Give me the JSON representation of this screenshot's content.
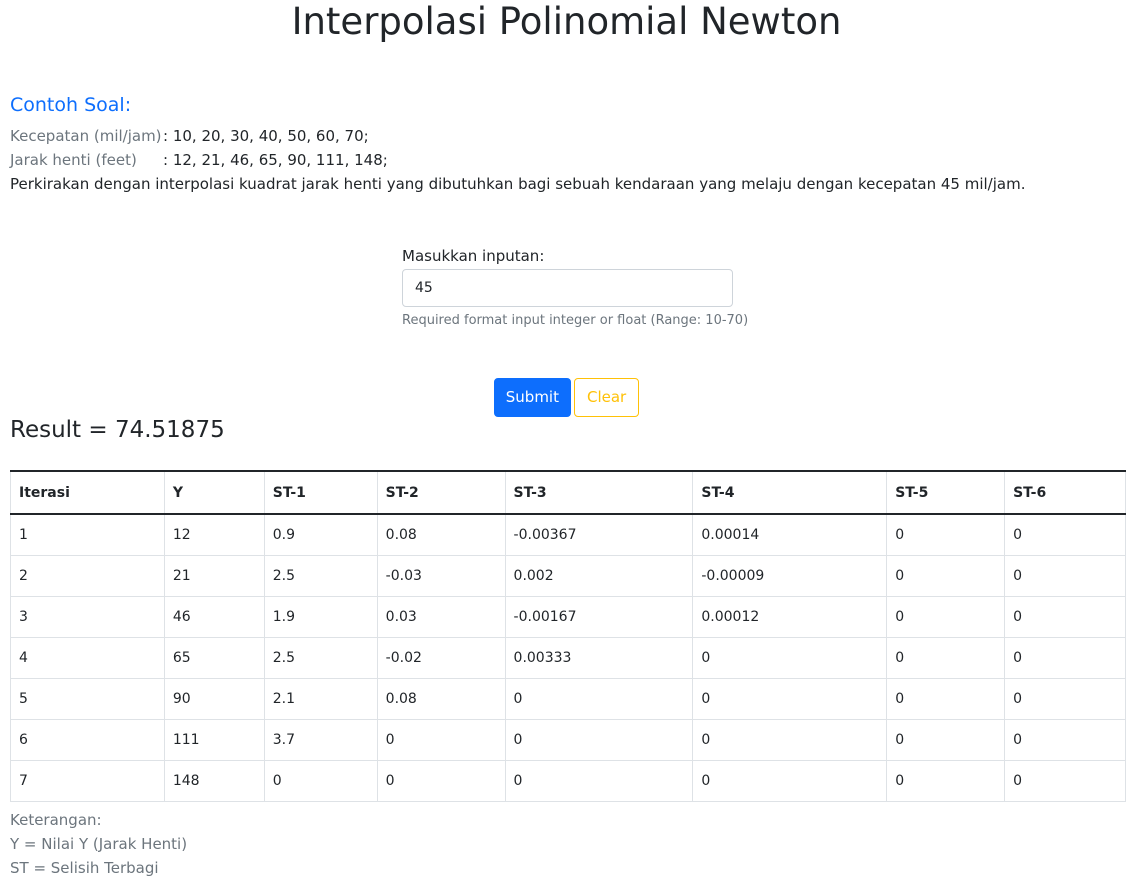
{
  "page": {
    "title": "Interpolasi Polinomial Newton"
  },
  "example": {
    "heading": "Contoh Soal:",
    "speed_label": "Kecepatan (mil/jam)",
    "speed_values": ": 10, 20, 30, 40, 50, 60, 70;",
    "distance_label": "Jarak henti (feet)",
    "distance_values": ": 12, 21, 46, 65, 90, 111, 148;",
    "question": "Perkirakan dengan interpolasi kuadrat jarak henti yang dibutuhkan bagi sebuah kendaraan yang melaju dengan kecepatan 45 mil/jam."
  },
  "form": {
    "label": "Masukkan inputan:",
    "value": "45",
    "help": "Required format input integer or float (Range: 10-70)",
    "submit_label": "Submit",
    "clear_label": "Clear"
  },
  "result": {
    "text": "Result = 74.51875"
  },
  "table": {
    "headers": [
      "Iterasi",
      "Y",
      "ST-1",
      "ST-2",
      "ST-3",
      "ST-4",
      "ST-5",
      "ST-6"
    ],
    "rows": [
      [
        "1",
        "12",
        "0.9",
        "0.08",
        "-0.00367",
        "0.00014",
        "0",
        "0"
      ],
      [
        "2",
        "21",
        "2.5",
        "-0.03",
        "0.002",
        "-0.00009",
        "0",
        "0"
      ],
      [
        "3",
        "46",
        "1.9",
        "0.03",
        "-0.00167",
        "0.00012",
        "0",
        "0"
      ],
      [
        "4",
        "65",
        "2.5",
        "-0.02",
        "0.00333",
        "0",
        "0",
        "0"
      ],
      [
        "5",
        "90",
        "2.1",
        "0.08",
        "0",
        "0",
        "0",
        "0"
      ],
      [
        "6",
        "111",
        "3.7",
        "0",
        "0",
        "0",
        "0",
        "0"
      ],
      [
        "7",
        "148",
        "0",
        "0",
        "0",
        "0",
        "0",
        "0"
      ]
    ]
  },
  "legend": {
    "heading": "Keterangan:",
    "y_note": "Y = Nilai Y (Jarak Henti)",
    "st_note": "ST = Selisih Terbagi"
  },
  "colors": {
    "primary": "#0d6efd",
    "warning": "#ffc107",
    "muted": "#6c757d"
  }
}
